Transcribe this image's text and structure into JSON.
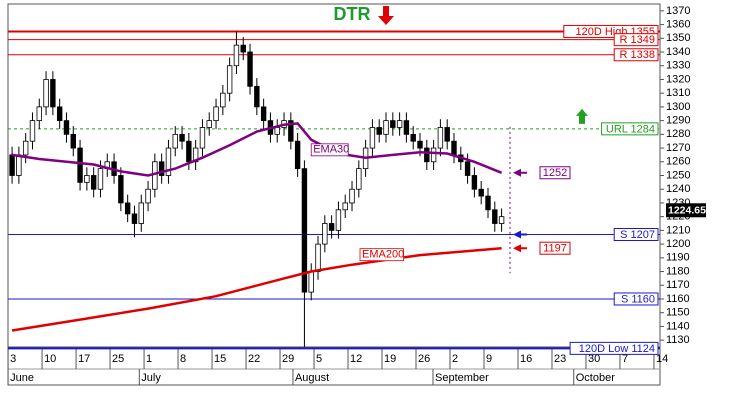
{
  "chart_data": {
    "type": "candlestick",
    "title": "DTR",
    "x": [
      0,
      1,
      2,
      3,
      4,
      5,
      6,
      7,
      8,
      9,
      10,
      11,
      12,
      13,
      14,
      15,
      16,
      17,
      18,
      19,
      20,
      21,
      22,
      23,
      24,
      25,
      26,
      27,
      28,
      29,
      30,
      31,
      32,
      33,
      34,
      35,
      36,
      37,
      38,
      39,
      40,
      41,
      42,
      43,
      44,
      45,
      46,
      47,
      48,
      49,
      50,
      51,
      52,
      53,
      54,
      55,
      56,
      57,
      58,
      59,
      60,
      61,
      62,
      63,
      64,
      65,
      66,
      67,
      68,
      69,
      70,
      71,
      72
    ],
    "open": [
      1265,
      1250,
      1265,
      1275,
      1290,
      1300,
      1320,
      1300,
      1290,
      1280,
      1270,
      1245,
      1250,
      1240,
      1255,
      1260,
      1250,
      1230,
      1222,
      1215,
      1230,
      1240,
      1260,
      1250,
      1270,
      1280,
      1275,
      1260,
      1270,
      1285,
      1290,
      1300,
      1310,
      1330,
      1345,
      1340,
      1315,
      1300,
      1290,
      1280,
      1285,
      1290,
      1275,
      1255,
      1165,
      1180,
      1200,
      1215,
      1210,
      1225,
      1230,
      1240,
      1255,
      1270,
      1285,
      1280,
      1290,
      1285,
      1290,
      1280,
      1275,
      1270,
      1260,
      1270,
      1285,
      1275,
      1265,
      1260,
      1250,
      1240,
      1235,
      1225,
      1215
    ],
    "high": [
      1271,
      1271,
      1281,
      1296,
      1306,
      1326,
      1326,
      1306,
      1296,
      1286,
      1276,
      1256,
      1256,
      1261,
      1266,
      1266,
      1256,
      1236,
      1228,
      1236,
      1246,
      1266,
      1266,
      1276,
      1286,
      1286,
      1281,
      1276,
      1291,
      1296,
      1306,
      1316,
      1336,
      1355,
      1351,
      1346,
      1321,
      1306,
      1296,
      1291,
      1296,
      1296,
      1281,
      1261,
      1186,
      1206,
      1221,
      1221,
      1231,
      1236,
      1246,
      1261,
      1276,
      1291,
      1291,
      1296,
      1296,
      1296,
      1296,
      1286,
      1281,
      1276,
      1276,
      1291,
      1291,
      1281,
      1271,
      1266,
      1256,
      1246,
      1241,
      1231,
      1226
    ],
    "low": [
      1244,
      1244,
      1259,
      1269,
      1284,
      1294,
      1294,
      1284,
      1274,
      1264,
      1239,
      1239,
      1234,
      1234,
      1249,
      1244,
      1224,
      1216,
      1205,
      1209,
      1224,
      1234,
      1244,
      1244,
      1264,
      1269,
      1254,
      1254,
      1264,
      1279,
      1284,
      1294,
      1304,
      1324,
      1334,
      1309,
      1294,
      1284,
      1274,
      1274,
      1279,
      1269,
      1249,
      1125,
      1159,
      1174,
      1194,
      1204,
      1204,
      1219,
      1224,
      1234,
      1249,
      1264,
      1274,
      1274,
      1279,
      1279,
      1274,
      1269,
      1264,
      1254,
      1254,
      1264,
      1269,
      1259,
      1254,
      1244,
      1234,
      1229,
      1219,
      1209,
      1209
    ],
    "close": [
      1250,
      1265,
      1275,
      1290,
      1300,
      1320,
      1300,
      1290,
      1280,
      1270,
      1245,
      1250,
      1240,
      1255,
      1260,
      1250,
      1230,
      1222,
      1215,
      1230,
      1240,
      1260,
      1250,
      1270,
      1280,
      1275,
      1260,
      1270,
      1285,
      1290,
      1300,
      1310,
      1330,
      1345,
      1340,
      1315,
      1300,
      1290,
      1280,
      1285,
      1290,
      1275,
      1255,
      1165,
      1180,
      1200,
      1215,
      1210,
      1225,
      1230,
      1240,
      1255,
      1270,
      1285,
      1280,
      1290,
      1285,
      1290,
      1280,
      1275,
      1270,
      1260,
      1270,
      1285,
      1275,
      1265,
      1260,
      1250,
      1240,
      1235,
      1225,
      1215,
      1220
    ],
    "xlim": [
      -0.6,
      95.3
    ],
    "xticks": [
      {
        "value": 0,
        "label": "3"
      },
      {
        "value": 5,
        "label": "10"
      },
      {
        "value": 10,
        "label": "17"
      },
      {
        "value": 15,
        "label": "25"
      },
      {
        "value": 20,
        "label": "1"
      },
      {
        "value": 25,
        "label": "8"
      },
      {
        "value": 30,
        "label": "15"
      },
      {
        "value": 35,
        "label": "22"
      },
      {
        "value": 40,
        "label": "29"
      },
      {
        "value": 45,
        "label": "5"
      },
      {
        "value": 50,
        "label": "12"
      },
      {
        "value": 55,
        "label": "19"
      },
      {
        "value": 60,
        "label": "26"
      },
      {
        "value": 65,
        "label": "2"
      },
      {
        "value": 70,
        "label": "9"
      },
      {
        "value": 75,
        "label": "16"
      },
      {
        "value": 80,
        "label": "23"
      },
      {
        "value": 85,
        "label": "30"
      },
      {
        "value": 90,
        "label": "7"
      },
      {
        "value": 95,
        "label": "14"
      }
    ],
    "months": [
      {
        "value": 0,
        "label": "June"
      },
      {
        "value": 19.3,
        "label": "July"
      },
      {
        "value": 41.9,
        "label": "August"
      },
      {
        "value": 62.5,
        "label": "September"
      },
      {
        "value": 83.2,
        "label": "October"
      }
    ],
    "ylim": [
      1125,
      1375
    ],
    "yticks": [
      1130,
      1140,
      1150,
      1160,
      1170,
      1180,
      1190,
      1200,
      1210,
      1220,
      1230,
      1240,
      1250,
      1260,
      1270,
      1280,
      1290,
      1300,
      1310,
      1320,
      1330,
      1340,
      1350,
      1360,
      1370
    ],
    "last_price": 1224.65,
    "lines": [
      {
        "name": "EMA30",
        "color": "#800080",
        "x": [
          0,
          4,
          8,
          12,
          16,
          20,
          24,
          28,
          32,
          36,
          40,
          42,
          44,
          48,
          52,
          56,
          60,
          64,
          68,
          72
        ],
        "values": [
          1265,
          1262,
          1260,
          1258,
          1253,
          1250,
          1255,
          1263,
          1272,
          1282,
          1287,
          1288,
          1276,
          1266,
          1263,
          1265,
          1267,
          1266,
          1260,
          1252
        ]
      },
      {
        "name": "EMA200",
        "color": "#e00000",
        "x": [
          0,
          10,
          20,
          30,
          40,
          44,
          50,
          60,
          72
        ],
        "values": [
          1137,
          1145,
          1153,
          1162,
          1175,
          1180,
          1185,
          1192,
          1197
        ]
      }
    ],
    "levels": [
      {
        "label": "120D High 1355",
        "value": 1355,
        "color": "#e00000"
      },
      {
        "label": "R 1349",
        "value": 1349,
        "color": "#e00000"
      },
      {
        "label": "R 1338",
        "value": 1338,
        "color": "#e00000"
      },
      {
        "label": "URL 1284",
        "value": 1284,
        "color": "#22a022"
      },
      {
        "label": "S 1207",
        "value": 1207,
        "color": "#1a1acc"
      },
      {
        "label": "S 1160",
        "value": 1160,
        "color": "#1a1acc"
      },
      {
        "label": "120D Low 1124",
        "value": 1124,
        "color": "#1a1acc"
      }
    ]
  }
}
